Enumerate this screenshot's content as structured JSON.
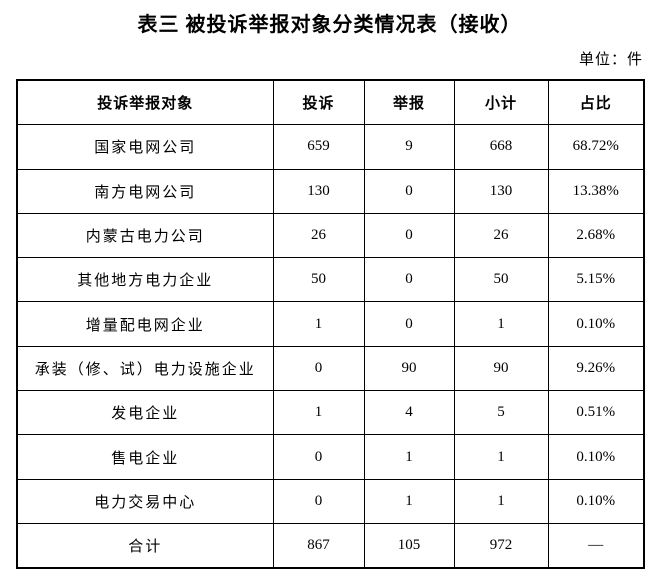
{
  "title": "表三 被投诉举报对象分类情况表（接收）",
  "unit_label": "单位：件",
  "table": {
    "columns": [
      "投诉举报对象",
      "投诉",
      "举报",
      "小计",
      "占比"
    ],
    "rows": [
      {
        "label": "国家电网公司",
        "complaints": "659",
        "reports": "9",
        "subtotal": "668",
        "share": "68.72%"
      },
      {
        "label": "南方电网公司",
        "complaints": "130",
        "reports": "0",
        "subtotal": "130",
        "share": "13.38%"
      },
      {
        "label": "内蒙古电力公司",
        "complaints": "26",
        "reports": "0",
        "subtotal": "26",
        "share": "2.68%"
      },
      {
        "label": "其他地方电力企业",
        "complaints": "50",
        "reports": "0",
        "subtotal": "50",
        "share": "5.15%"
      },
      {
        "label": "增量配电网企业",
        "complaints": "1",
        "reports": "0",
        "subtotal": "1",
        "share": "0.10%"
      },
      {
        "label": "承装（修、试）电力设施企业",
        "complaints": "0",
        "reports": "90",
        "subtotal": "90",
        "share": "9.26%"
      },
      {
        "label": "发电企业",
        "complaints": "1",
        "reports": "4",
        "subtotal": "5",
        "share": "0.51%"
      },
      {
        "label": "售电企业",
        "complaints": "0",
        "reports": "1",
        "subtotal": "1",
        "share": "0.10%"
      },
      {
        "label": "电力交易中心",
        "complaints": "0",
        "reports": "1",
        "subtotal": "1",
        "share": "0.10%"
      },
      {
        "label": "合计",
        "complaints": "867",
        "reports": "105",
        "subtotal": "972",
        "share": "—",
        "is_total": true
      }
    ]
  }
}
